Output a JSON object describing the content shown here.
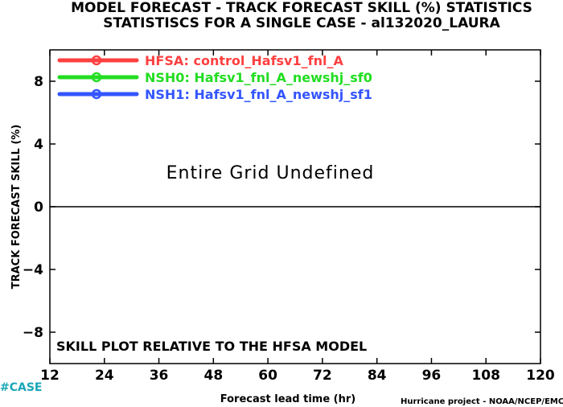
{
  "chart_data": {
    "type": "line",
    "title": "MODEL FORECAST - TRACK FORECAST SKILL (%) STATISTICS",
    "subtitle": "STATISTISCS FOR A SINGLE CASE - al132020_LAURA",
    "xlabel": "Forecast lead time (hr)",
    "ylabel": "TRACK FORECAST SKILL (%)",
    "x_ticks": [
      12,
      24,
      36,
      48,
      60,
      72,
      84,
      96,
      108,
      120
    ],
    "xlim": [
      12,
      120
    ],
    "y_ticks": [
      8,
      4,
      0,
      -4,
      -8
    ],
    "y_tick_labels": [
      "8",
      "4",
      "0",
      "−4",
      "−8"
    ],
    "ylim": [
      -10,
      10
    ],
    "reference_line": 0,
    "grid": false,
    "legend_position": "top-left",
    "series": [
      {
        "name": "HFSA: control_Hafsv1_fnl_A",
        "color": "#ff4040",
        "values": []
      },
      {
        "name": "NSH0: Hafsv1_fnl_A_newshj_sf0",
        "color": "#22dd22",
        "values": []
      },
      {
        "name": "NSH1: Hafsv1_fnl_A_newshj_sf1",
        "color": "#3355ff",
        "values": []
      }
    ],
    "annotation": "Entire Grid Undefined",
    "note": "SKILL PLOT RELATIVE TO THE HFSA MODEL"
  },
  "footer": {
    "case_tag": "#CASE",
    "credit": "Hurricane project - NOAA/NCEP/EMC"
  }
}
